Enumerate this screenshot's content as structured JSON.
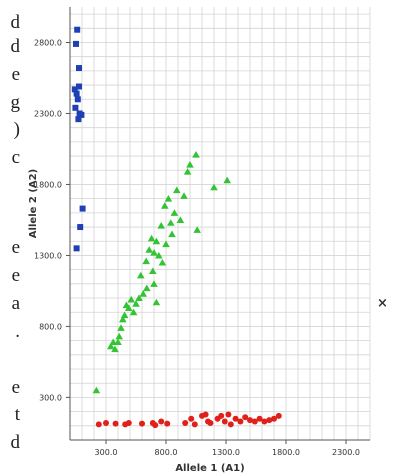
{
  "side_text": [
    "d",
    "d",
    "e",
    "g",
    ")",
    "c",
    "e",
    "e",
    "a",
    ".",
    "e",
    "t",
    "d"
  ],
  "close_symbol": "×",
  "chart_data": {
    "type": "scatter",
    "title": "",
    "xlabel": "Allele 1 (A1)",
    "ylabel": "Allele 2 (A2)",
    "xlim": [
      0,
      2500
    ],
    "ylim": [
      0,
      3050
    ],
    "x_ticks": [
      300,
      800,
      1300,
      1800,
      2300
    ],
    "y_ticks": [
      300,
      800,
      1300,
      1800,
      2300,
      2800
    ],
    "tick_format": "0.0",
    "grid": true,
    "colors": {
      "blue": "#1f3fb4",
      "green": "#33c433",
      "red": "#e0201a"
    },
    "series": [
      {
        "color": "blue",
        "marker": "square",
        "points": [
          [
            60,
            2890
          ],
          [
            50,
            2790
          ],
          [
            75,
            2620
          ],
          [
            40,
            2470
          ],
          [
            55,
            2440
          ],
          [
            75,
            2490
          ],
          [
            65,
            2400
          ],
          [
            45,
            2340
          ],
          [
            80,
            2300
          ],
          [
            95,
            2290
          ],
          [
            70,
            2260
          ],
          [
            105,
            1630
          ],
          [
            85,
            1500
          ],
          [
            55,
            1350
          ]
        ]
      },
      {
        "color": "green",
        "marker": "triangle",
        "points": [
          [
            220,
            350
          ],
          [
            340,
            660
          ],
          [
            360,
            690
          ],
          [
            375,
            640
          ],
          [
            400,
            690
          ],
          [
            410,
            730
          ],
          [
            425,
            790
          ],
          [
            440,
            850
          ],
          [
            455,
            880
          ],
          [
            470,
            950
          ],
          [
            490,
            930
          ],
          [
            510,
            990
          ],
          [
            530,
            900
          ],
          [
            550,
            960
          ],
          [
            575,
            1000
          ],
          [
            590,
            1160
          ],
          [
            610,
            1030
          ],
          [
            635,
            1260
          ],
          [
            660,
            1340
          ],
          [
            680,
            1420
          ],
          [
            700,
            1100
          ],
          [
            720,
            1400
          ],
          [
            740,
            1300
          ],
          [
            760,
            1510
          ],
          [
            770,
            1250
          ],
          [
            790,
            1650
          ],
          [
            800,
            1380
          ],
          [
            820,
            1700
          ],
          [
            840,
            1530
          ],
          [
            850,
            1450
          ],
          [
            870,
            1600
          ],
          [
            890,
            1760
          ],
          [
            920,
            1550
          ],
          [
            950,
            1720
          ],
          [
            980,
            1890
          ],
          [
            1000,
            1940
          ],
          [
            1050,
            2010
          ],
          [
            1310,
            1830
          ],
          [
            1060,
            1480
          ],
          [
            1200,
            1780
          ],
          [
            700,
            1320
          ],
          [
            690,
            1190
          ],
          [
            720,
            970
          ],
          [
            640,
            1070
          ]
        ]
      },
      {
        "color": "red",
        "marker": "circle",
        "points": [
          [
            240,
            110
          ],
          [
            300,
            120
          ],
          [
            380,
            115
          ],
          [
            460,
            110
          ],
          [
            490,
            120
          ],
          [
            600,
            115
          ],
          [
            690,
            120
          ],
          [
            710,
            105
          ],
          [
            760,
            130
          ],
          [
            810,
            115
          ],
          [
            960,
            120
          ],
          [
            1010,
            150
          ],
          [
            1040,
            110
          ],
          [
            1100,
            170
          ],
          [
            1130,
            180
          ],
          [
            1150,
            130
          ],
          [
            1170,
            120
          ],
          [
            1230,
            150
          ],
          [
            1260,
            170
          ],
          [
            1290,
            130
          ],
          [
            1320,
            180
          ],
          [
            1340,
            110
          ],
          [
            1380,
            150
          ],
          [
            1420,
            130
          ],
          [
            1460,
            160
          ],
          [
            1500,
            140
          ],
          [
            1540,
            130
          ],
          [
            1580,
            150
          ],
          [
            1620,
            130
          ],
          [
            1660,
            140
          ],
          [
            1700,
            150
          ],
          [
            1740,
            170
          ]
        ]
      }
    ]
  }
}
